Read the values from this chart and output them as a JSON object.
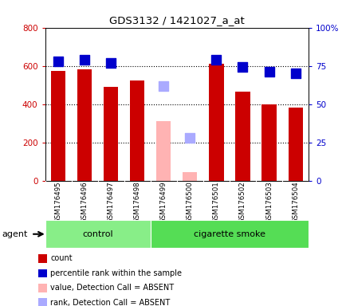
{
  "title": "GDS3132 / 1421027_a_at",
  "samples": [
    "GSM176495",
    "GSM176496",
    "GSM176497",
    "GSM176498",
    "GSM176499",
    "GSM176500",
    "GSM176501",
    "GSM176502",
    "GSM176503",
    "GSM176504"
  ],
  "count_values": [
    575,
    580,
    490,
    525,
    null,
    null,
    610,
    465,
    400,
    380
  ],
  "count_absent": [
    null,
    null,
    null,
    null,
    310,
    45,
    null,
    null,
    null,
    null
  ],
  "rank_values": [
    78,
    79,
    77,
    null,
    null,
    null,
    79,
    74,
    71,
    70
  ],
  "rank_absent": [
    null,
    null,
    null,
    null,
    62,
    28,
    null,
    null,
    null,
    null
  ],
  "bar_color_present": "#cc0000",
  "bar_color_absent": "#ffb3b3",
  "dot_color_present": "#0000cc",
  "dot_color_absent": "#aaaaff",
  "ylim_left": [
    0,
    800
  ],
  "ylim_right": [
    0,
    100
  ],
  "yticks_left": [
    0,
    200,
    400,
    600,
    800
  ],
  "yticks_right": [
    0,
    25,
    50,
    75,
    100
  ],
  "ytick_labels_left": [
    "0",
    "200",
    "400",
    "600",
    "800"
  ],
  "ytick_labels_right": [
    "0",
    "25",
    "50",
    "75",
    "100%"
  ],
  "groups": [
    {
      "label": "control",
      "start": 0,
      "end": 3,
      "color": "#88ee88"
    },
    {
      "label": "cigarette smoke",
      "start": 4,
      "end": 9,
      "color": "#55dd55"
    }
  ],
  "agent_label": "agent",
  "bar_width": 0.55,
  "dot_size": 70,
  "legend_items": [
    {
      "color": "#cc0000",
      "label": "count"
    },
    {
      "color": "#0000cc",
      "label": "percentile rank within the sample"
    },
    {
      "color": "#ffb3b3",
      "label": "value, Detection Call = ABSENT"
    },
    {
      "color": "#aaaaff",
      "label": "rank, Detection Call = ABSENT"
    }
  ]
}
